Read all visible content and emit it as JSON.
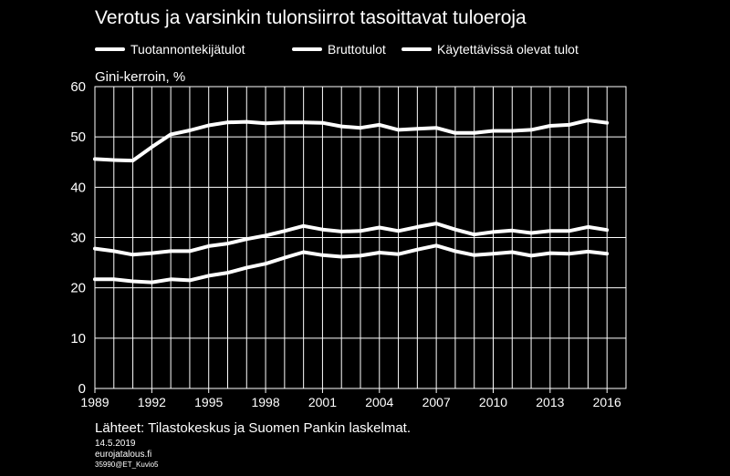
{
  "chart_data": {
    "type": "line",
    "title": "Verotus ja varsinkin tulonsiirrot tasoittavat tuloeroja",
    "ylabel": "Gini-kerroin, %",
    "xlabel": "",
    "xlim": [
      1989,
      2017
    ],
    "ylim": [
      0,
      60
    ],
    "yticks": [
      0,
      10,
      20,
      30,
      40,
      50,
      60
    ],
    "xticks": [
      1989,
      1992,
      1995,
      1998,
      2001,
      2004,
      2007,
      2010,
      2013,
      2016
    ],
    "grid": true,
    "legend_position": "top",
    "line_color": "#ffffff",
    "x": [
      1989,
      1990,
      1991,
      1992,
      1993,
      1994,
      1995,
      1996,
      1997,
      1998,
      1999,
      2000,
      2001,
      2002,
      2003,
      2004,
      2005,
      2006,
      2007,
      2008,
      2009,
      2010,
      2011,
      2012,
      2013,
      2014,
      2015,
      2016
    ],
    "series": [
      {
        "name": "Tuotannontekijätulot",
        "values": [
          45.6,
          45.4,
          45.3,
          48.0,
          50.5,
          51.3,
          52.3,
          52.9,
          53.0,
          52.7,
          52.9,
          52.9,
          52.8,
          52.1,
          51.8,
          52.4,
          51.4,
          51.6,
          51.8,
          50.8,
          50.8,
          51.2,
          51.2,
          51.4,
          52.2,
          52.4,
          53.3,
          52.8
        ]
      },
      {
        "name": "Bruttotulot",
        "values": [
          27.8,
          27.3,
          26.6,
          26.9,
          27.3,
          27.3,
          28.3,
          28.8,
          29.7,
          30.4,
          31.3,
          32.3,
          31.6,
          31.2,
          31.3,
          32.0,
          31.3,
          32.1,
          32.8,
          31.6,
          30.6,
          31.1,
          31.4,
          30.9,
          31.3,
          31.3,
          32.1,
          31.5
        ]
      },
      {
        "name": "Käytettävissä olevat tulot",
        "values": [
          21.7,
          21.7,
          21.3,
          21.1,
          21.7,
          21.5,
          22.4,
          23.0,
          24.0,
          24.8,
          26.0,
          27.1,
          26.5,
          26.2,
          26.4,
          27.0,
          26.7,
          27.6,
          28.4,
          27.3,
          26.5,
          26.8,
          27.1,
          26.4,
          26.9,
          26.8,
          27.2,
          26.8
        ]
      }
    ]
  },
  "footer": {
    "source": "Lähteet: Tilastokeskus ja Suomen Pankin laskelmat.",
    "date": "14.5.2019",
    "site": "eurojatalous.fi",
    "code": "35990@ET_Kuvio5"
  }
}
